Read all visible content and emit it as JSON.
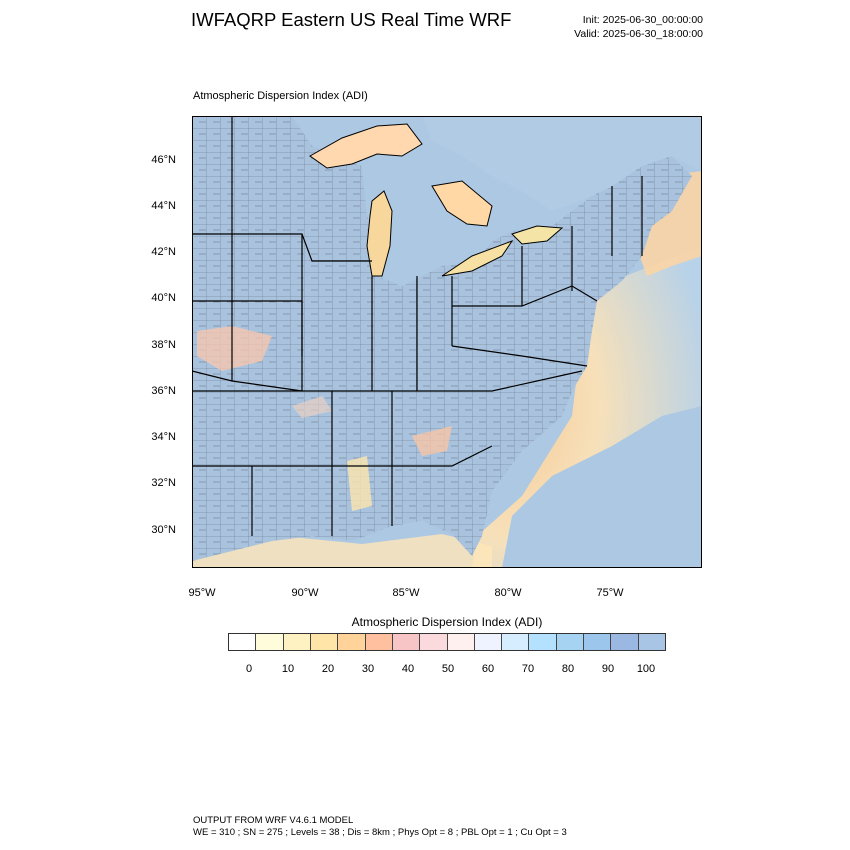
{
  "header": {
    "title": "IWFAQRP Eastern US Real Time WRF",
    "init": "Init: 2025-06-30_00:00:00",
    "valid": "Valid: 2025-06-30_18:00:00"
  },
  "plot": {
    "title": "Atmospheric Dispersion Index   (ADI)"
  },
  "axes": {
    "lat_labels": [
      "46°N",
      "44°N",
      "42°N",
      "40°N",
      "38°N",
      "36°N",
      "34°N",
      "32°N",
      "30°N"
    ],
    "lon_labels": [
      "95°W",
      "90°W",
      "85°W",
      "80°W",
      "75°W"
    ]
  },
  "colorbar": {
    "title": "Atmospheric Dispersion Index  (ADI)",
    "labels": [
      "0",
      "10",
      "20",
      "30",
      "40",
      "50",
      "60",
      "70",
      "80",
      "90",
      "100"
    ],
    "colors": [
      "#ffffff",
      "#fffcdc",
      "#fff2c2",
      "#ffe6a8",
      "#ffd399",
      "#ffc0a0",
      "#f7c5c5",
      "#fadadd",
      "#fff0f0",
      "#eef3ff",
      "#d6ecff",
      "#b4e1ff",
      "#a7d3f2",
      "#9cc6ec",
      "#9bb8e3",
      "#a8c5e6"
    ]
  },
  "colors": {
    "land": "#a9c3df",
    "water_high": "#acc8e2",
    "ocean_low": "#ffd3a0",
    "county_lines": "#2a2a2a",
    "state_lines": "#000000"
  },
  "footer": {
    "line1": "OUTPUT FROM WRF V4.6.1 MODEL",
    "line2": "WE = 310 ; SN = 275 ; Levels = 38 ; Dis = 8km ; Phys Opt = 8 ; PBL Opt = 1 ; Cu Opt = 3"
  }
}
